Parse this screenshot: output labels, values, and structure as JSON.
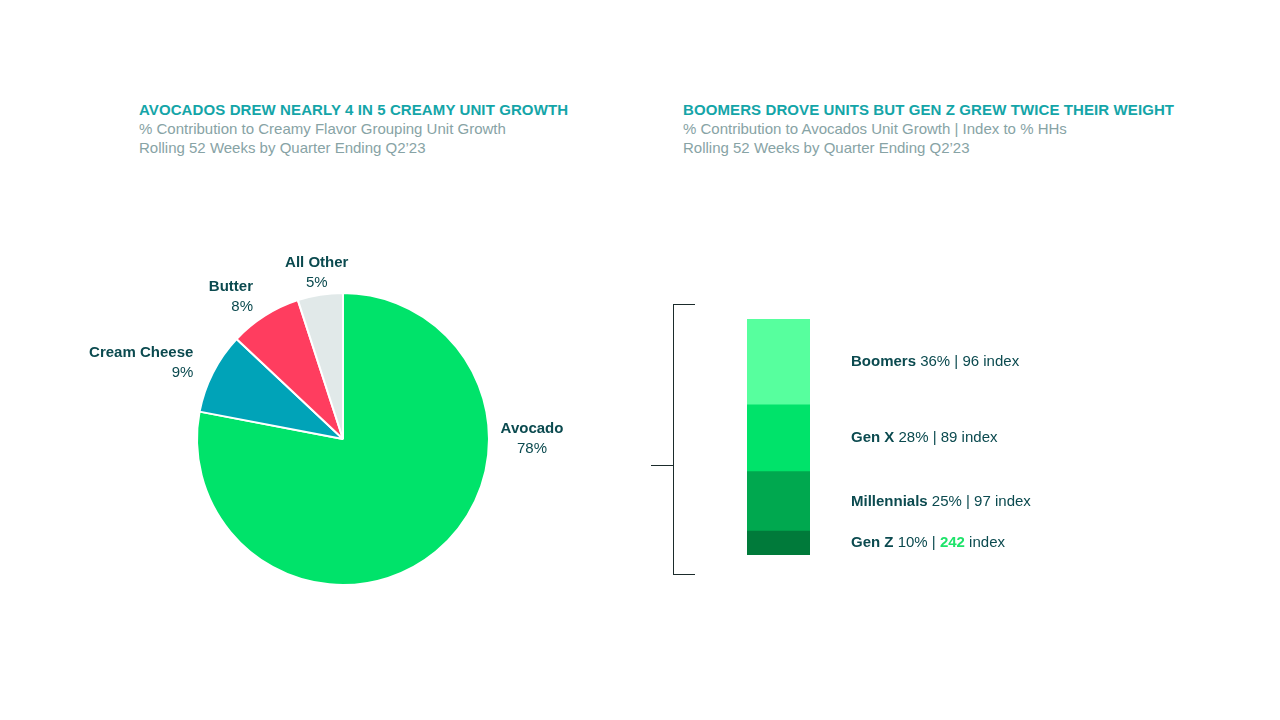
{
  "chart_data": [
    {
      "type": "pie",
      "title": "AVOCADOS DREW NEARLY 4 IN 5 CREAMY UNIT GROWTH",
      "subtitle": [
        "% Contribution to Creamy Flavor Grouping Unit Growth",
        "Rolling 52 Weeks by Quarter Ending Q2’23"
      ],
      "categories": [
        "Avocado",
        "Cream Cheese",
        "Butter",
        "All Other"
      ],
      "values": [
        78,
        9,
        8,
        5
      ],
      "value_labels": [
        "78%",
        "9%",
        "8%",
        "5%"
      ],
      "colors": [
        "#00e36a",
        "#00a3b8",
        "#ff3d5f",
        "#e1e9e9"
      ],
      "data_labels": true
    },
    {
      "type": "bar",
      "stacked": true,
      "title": "BOOMERS DROVE UNITS BUT GEN Z GREW TWICE THEIR WEIGHT",
      "subtitle": [
        "% Contribution to Avocados Unit Growth | Index to % HHs",
        "Rolling 52 Weeks by Quarter Ending Q2’23"
      ],
      "categories": [
        null
      ],
      "series": [
        {
          "name": "Boomers",
          "color": "#57ff9e",
          "values": [
            36
          ],
          "value_labels": [
            "36%"
          ],
          "index": 96
        },
        {
          "name": "Gen X",
          "color": "#00e36a",
          "values": [
            28
          ],
          "value_labels": [
            "28%"
          ],
          "index": 89
        },
        {
          "name": "Millennials",
          "color": "#00a84f",
          "values": [
            25
          ],
          "value_labels": [
            "25%"
          ],
          "index": 97
        },
        {
          "name": "Gen Z",
          "color": "#007a3a",
          "values": [
            10
          ],
          "value_labels": [
            "10%"
          ],
          "index": 242,
          "index_color": "#1ee36a"
        }
      ],
      "separator": "|",
      "index_text": "index",
      "ylim": [
        0,
        99
      ],
      "grid": false,
      "tick_labels": false,
      "data_labels": true
    }
  ]
}
